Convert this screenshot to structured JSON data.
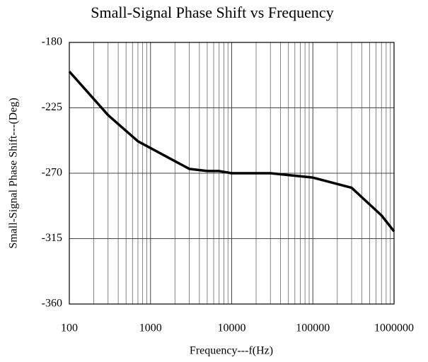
{
  "chart_data": {
    "type": "line",
    "title": "Small-Signal Phase Shift vs Frequency",
    "xlabel": "Frequency---f(Hz)",
    "ylabel": "Small-Signal Phase Shift---(Deg)",
    "x": [
      100,
      300,
      700,
      3000,
      5000,
      7000,
      10000,
      30000,
      100000,
      300000,
      700000,
      1000000
    ],
    "series": [
      {
        "name": "Phase Shift",
        "color": "#000000",
        "values": [
          -200,
          -230,
          -248,
          -267,
          -268.5,
          -268.5,
          -270,
          -270,
          -273,
          -280,
          -299,
          -310
        ]
      }
    ],
    "xlim": [
      100,
      1000000
    ],
    "xticks": [
      100,
      1000,
      10000,
      100000,
      1000000
    ],
    "xscale": "log",
    "ylim": [
      -360,
      -180
    ],
    "yticks": [
      -180,
      -225,
      -270,
      -315,
      -360
    ],
    "grid": true,
    "minor_grid": true
  }
}
